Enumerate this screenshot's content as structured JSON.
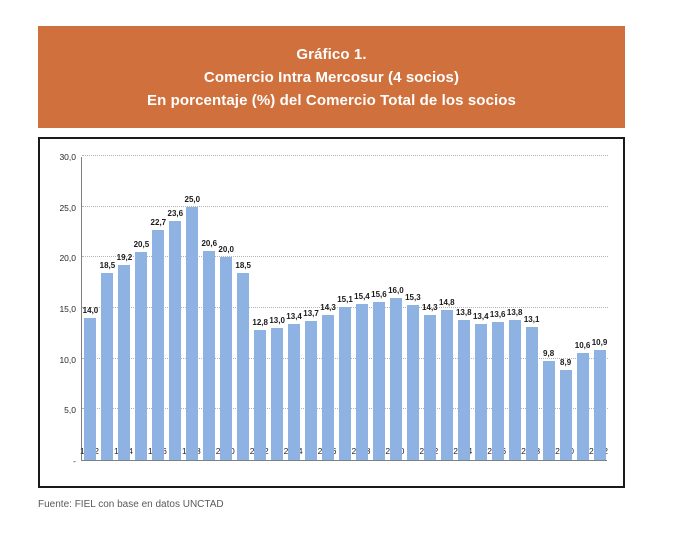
{
  "header": {
    "title_line1": "Gráfico 1.",
    "title_line2": "Comercio Intra Mercosur (4 socios)",
    "title_line3": "En porcentaje (%) del Comercio Total de los socios"
  },
  "footer": {
    "source": "Fuente: FIEL con base en datos UNCTAD"
  },
  "colors": {
    "banner_background": "#D0703C",
    "banner_text": "#FFFFFF",
    "bar_fill": "#8EB3E2",
    "chart_border": "#1A1A1A",
    "axis_line": "#7F7F7F",
    "gridline": "#B3B3B3",
    "data_label": "#1A1A1A",
    "source_text": "#595959"
  },
  "chart_data": {
    "type": "bar",
    "title": "Gráfico 1. Comercio Intra Mercosur (4 socios) En porcentaje (%) del Comercio Total de los socios",
    "xlabel": "",
    "ylabel": "",
    "x": [
      1992,
      1993,
      1994,
      1995,
      1996,
      1997,
      1998,
      1999,
      2000,
      2001,
      2002,
      2003,
      2004,
      2005,
      2006,
      2007,
      2008,
      2009,
      2010,
      2011,
      2012,
      2013,
      2014,
      2015,
      2016,
      2017,
      2018,
      2019,
      2020,
      2021,
      2022
    ],
    "values": [
      14.0,
      18.5,
      19.2,
      20.5,
      22.7,
      23.6,
      25.0,
      20.6,
      20.0,
      18.5,
      12.8,
      13.0,
      13.4,
      13.7,
      14.3,
      15.1,
      15.4,
      15.6,
      16.0,
      15.3,
      14.3,
      14.8,
      13.8,
      13.4,
      13.6,
      13.8,
      13.1,
      9.8,
      8.9,
      10.6,
      10.9
    ],
    "value_labels": [
      "14,0",
      "18,5",
      "19,2",
      "20,5",
      "22,7",
      "23,6",
      "25,0",
      "20,6",
      "20,0",
      "18,5",
      "12,8",
      "13,0",
      "13,4",
      "13,7",
      "14,3",
      "15,1",
      "15,4",
      "15,6",
      "16,0",
      "15,3",
      "14,3",
      "14,8",
      "13,8",
      "13,4",
      "13,6",
      "13,8",
      "13,1",
      "9,8",
      "8,9",
      "10,6",
      "10,9"
    ],
    "x_tick_labels": [
      "1992",
      "1994",
      "1996",
      "1998",
      "2000",
      "2002",
      "2004",
      "2006",
      "2008",
      "2010",
      "2012",
      "2014",
      "2016",
      "2018",
      "2020",
      "2022"
    ],
    "y_ticks": [
      {
        "value": 30,
        "label": "30,0"
      },
      {
        "value": 25,
        "label": "25,0"
      },
      {
        "value": 20,
        "label": "20,0"
      },
      {
        "value": 15,
        "label": "15,0"
      },
      {
        "value": 10,
        "label": "10,0"
      },
      {
        "value": 5,
        "label": "5,0"
      },
      {
        "value": 0,
        "label": "-"
      }
    ],
    "ylim": [
      0,
      30
    ],
    "grid": "horizontal-dotted",
    "legend_position": "none",
    "decimal_separator": ","
  }
}
